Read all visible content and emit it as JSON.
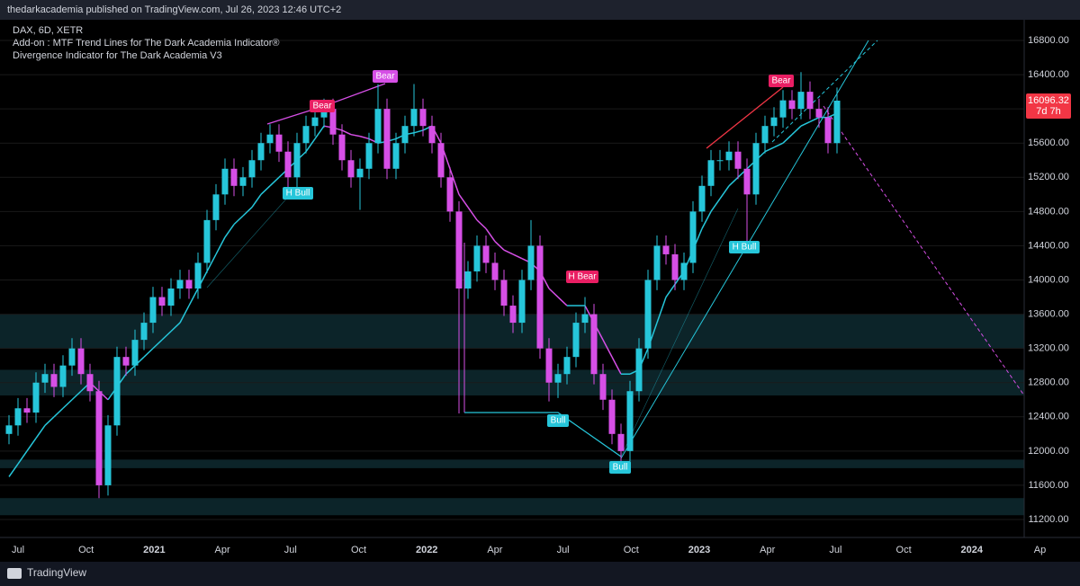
{
  "header": {
    "text": "thedarkacademia published on TradingView.com, Jul 26, 2023 12:46 UTC+2"
  },
  "footer": {
    "brand": "TradingView"
  },
  "chart_data": {
    "type": "candlestick",
    "legend": [
      "DAX, 6D, XETR",
      "Add-on : MTF Trend Lines for The Dark Academia Indicator®",
      "Divergence Indicator for The Dark Academia V3"
    ],
    "up_color": "#26c6da",
    "down_color": "#d64fe6",
    "ylim": [
      11200,
      16800
    ],
    "yticks": [
      {
        "value": 11200,
        "label": "11200.00"
      },
      {
        "value": 11600,
        "label": "11600.00"
      },
      {
        "value": 12000,
        "label": "12000.00"
      },
      {
        "value": 12400,
        "label": "12400.00"
      },
      {
        "value": 12800,
        "label": "12800.00"
      },
      {
        "value": 13200,
        "label": "13200.00"
      },
      {
        "value": 13600,
        "label": "13600.00"
      },
      {
        "value": 14000,
        "label": "14000.00"
      },
      {
        "value": 14400,
        "label": "14400.00"
      },
      {
        "value": 14800,
        "label": "14800.00"
      },
      {
        "value": 15200,
        "label": "15200.00"
      },
      {
        "value": 15600,
        "label": "15600.00"
      },
      {
        "value": 16000,
        "label": "16000.00"
      },
      {
        "value": 16400,
        "label": "16400.00"
      },
      {
        "value": 16800,
        "label": "16800.00"
      }
    ],
    "xticks": [
      "Jul",
      "Oct",
      "2021",
      "Apr",
      "Jul",
      "Oct",
      "2022",
      "Apr",
      "Jul",
      "Oct",
      "2023",
      "Apr",
      "Jul",
      "Oct",
      "2024",
      "Ap"
    ],
    "last_price": {
      "value": 16096.32,
      "label": "16096.32",
      "countdown": "7d 7h"
    },
    "zones": [
      [
        13200,
        13600
      ],
      [
        12650,
        12950
      ],
      [
        11800,
        11900
      ],
      [
        11250,
        11450
      ]
    ],
    "annotations": [
      "Bear",
      "Bear",
      "H Bull",
      "H Bear",
      "Bull",
      "Bull",
      "H Bull",
      "Bear"
    ],
    "candles": [
      [
        12200,
        12420,
        12080,
        12300
      ],
      [
        12300,
        12620,
        12180,
        12500
      ],
      [
        12500,
        12620,
        12330,
        12450
      ],
      [
        12450,
        12920,
        12330,
        12800
      ],
      [
        12800,
        13020,
        12680,
        12900
      ],
      [
        12900,
        13020,
        12630,
        12750
      ],
      [
        12750,
        13120,
        12630,
        13000
      ],
      [
        13000,
        13320,
        12880,
        13200
      ],
      [
        13200,
        13320,
        12780,
        12900
      ],
      [
        12900,
        13020,
        12580,
        12700
      ],
      [
        12700,
        12820,
        11450,
        11600
      ],
      [
        11600,
        12420,
        11480,
        12300
      ],
      [
        12300,
        13220,
        12180,
        13100
      ],
      [
        13100,
        13220,
        12880,
        13000
      ],
      [
        13000,
        13420,
        12880,
        13300
      ],
      [
        13300,
        13620,
        13180,
        13500
      ],
      [
        13500,
        13920,
        13380,
        13800
      ],
      [
        13800,
        13920,
        13580,
        13700
      ],
      [
        13700,
        14020,
        13580,
        13900
      ],
      [
        13900,
        14120,
        13780,
        14000
      ],
      [
        14000,
        14120,
        13780,
        13900
      ],
      [
        13900,
        14320,
        13780,
        14200
      ],
      [
        14200,
        14820,
        14080,
        14700
      ],
      [
        14700,
        15120,
        14580,
        15000
      ],
      [
        15000,
        15420,
        14880,
        15300
      ],
      [
        15300,
        15420,
        14980,
        15100
      ],
      [
        15100,
        15320,
        14980,
        15200
      ],
      [
        15200,
        15520,
        15080,
        15400
      ],
      [
        15400,
        15720,
        15280,
        15600
      ],
      [
        15600,
        15820,
        15480,
        15700
      ],
      [
        15700,
        15820,
        15380,
        15500
      ],
      [
        15500,
        15620,
        15080,
        15200
      ],
      [
        15200,
        15720,
        15080,
        15600
      ],
      [
        15600,
        15920,
        15480,
        15800
      ],
      [
        15800,
        16020,
        15680,
        15900
      ],
      [
        15900,
        16120,
        15780,
        16000
      ],
      [
        16000,
        16120,
        15580,
        15700
      ],
      [
        15700,
        15820,
        15280,
        15400
      ],
      [
        15400,
        15520,
        15080,
        15200
      ],
      [
        15200,
        15420,
        14820,
        15300
      ],
      [
        15300,
        15720,
        15180,
        15600
      ],
      [
        15600,
        16290,
        15480,
        16000
      ],
      [
        16000,
        16120,
        15180,
        15300
      ],
      [
        15300,
        15720,
        15180,
        15600
      ],
      [
        15600,
        15920,
        15480,
        15800
      ],
      [
        15800,
        16290,
        15680,
        16000
      ],
      [
        16000,
        16120,
        15680,
        15800
      ],
      [
        15800,
        15920,
        15480,
        15600
      ],
      [
        15600,
        15720,
        15080,
        15200
      ],
      [
        15200,
        15320,
        14680,
        14800
      ],
      [
        14800,
        14920,
        12440,
        13900
      ],
      [
        13900,
        14220,
        13780,
        14100
      ],
      [
        14100,
        14520,
        13980,
        14400
      ],
      [
        14400,
        14520,
        14080,
        14200
      ],
      [
        14200,
        14320,
        13880,
        14000
      ],
      [
        14000,
        14120,
        13580,
        13700
      ],
      [
        13700,
        13820,
        13380,
        13500
      ],
      [
        13500,
        14120,
        13380,
        14000
      ],
      [
        14000,
        14700,
        13880,
        14400
      ],
      [
        14400,
        14520,
        13080,
        13200
      ],
      [
        13200,
        13320,
        12580,
        12800
      ],
      [
        12800,
        13020,
        12620,
        12900
      ],
      [
        12900,
        13220,
        12780,
        13100
      ],
      [
        13100,
        13620,
        12980,
        13500
      ],
      [
        13500,
        13800,
        13380,
        13600
      ],
      [
        13600,
        13720,
        12780,
        12900
      ],
      [
        12900,
        13020,
        12480,
        12600
      ],
      [
        12600,
        12720,
        12080,
        12200
      ],
      [
        12200,
        12320,
        11860,
        12000
      ],
      [
        12000,
        12820,
        11880,
        12700
      ],
      [
        12700,
        13320,
        12580,
        13200
      ],
      [
        13200,
        14120,
        13080,
        14000
      ],
      [
        14000,
        14520,
        13880,
        14400
      ],
      [
        14400,
        14520,
        14180,
        14300
      ],
      [
        14300,
        14420,
        13880,
        14000
      ],
      [
        14000,
        14320,
        13880,
        14200
      ],
      [
        14200,
        14920,
        14080,
        14800
      ],
      [
        14800,
        15220,
        14680,
        15100
      ],
      [
        15100,
        15520,
        14980,
        15400
      ],
      [
        15400,
        15520,
        15280,
        15400
      ],
      [
        15400,
        15620,
        15280,
        15500
      ],
      [
        15500,
        15620,
        15180,
        15300
      ],
      [
        15300,
        15420,
        14450,
        15000
      ],
      [
        15000,
        15720,
        14880,
        15600
      ],
      [
        15600,
        15920,
        15480,
        15800
      ],
      [
        15800,
        16020,
        15680,
        15900
      ],
      [
        15900,
        16220,
        15780,
        16100
      ],
      [
        16100,
        16220,
        15880,
        16000
      ],
      [
        16000,
        16430,
        15880,
        16200
      ],
      [
        16200,
        16320,
        15880,
        16000
      ],
      [
        16000,
        16120,
        15780,
        15900
      ],
      [
        15900,
        16020,
        15480,
        15600
      ],
      [
        15600,
        16250,
        15480,
        16096.32
      ]
    ],
    "ma": [
      11700,
      11850,
      12000,
      12150,
      12300,
      12400,
      12500,
      12600,
      12700,
      12800,
      12700,
      12600,
      12750,
      12900,
      13000,
      13100,
      13200,
      13300,
      13400,
      13500,
      13700,
      13900,
      14100,
      14300,
      14500,
      14650,
      14750,
      14850,
      15000,
      15100,
      15200,
      15300,
      15400,
      15500,
      15650,
      15800,
      15780,
      15750,
      15700,
      15680,
      15650,
      15600,
      15620,
      15650,
      15700,
      15720,
      15750,
      15800,
      15600,
      15300,
      15000,
      14850,
      14700,
      14600,
      14450,
      14350,
      14300,
      14250,
      14200,
      14100,
      13900,
      13800,
      13700,
      13700,
      13700,
      13500,
      13300,
      13100,
      12900,
      12900,
      12950,
      13200,
      13500,
      13800,
      13950,
      14100,
      14350,
      14600,
      14800,
      14950,
      15100,
      15200,
      15300,
      15400,
      15500,
      15550,
      15600,
      15700,
      15800,
      15850,
      15900,
      15900,
      15950
    ]
  }
}
